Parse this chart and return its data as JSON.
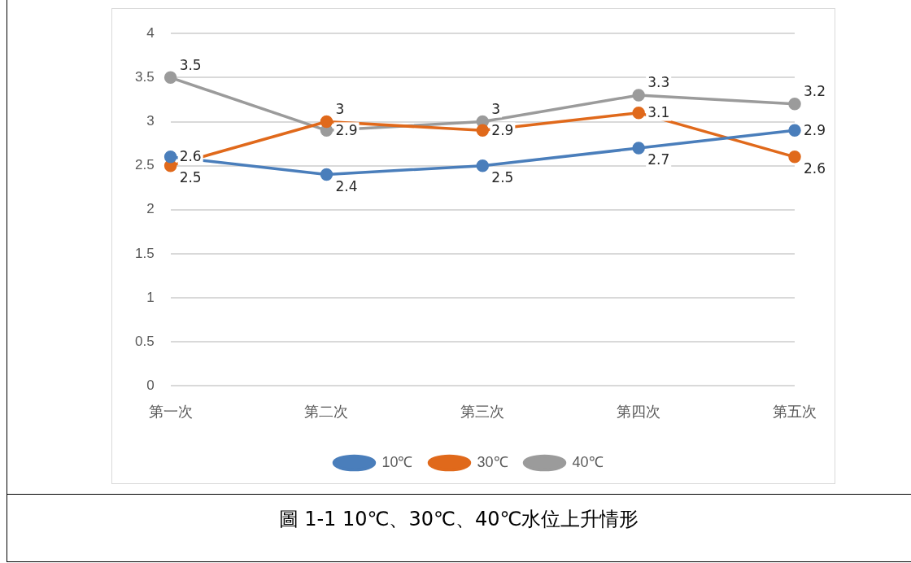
{
  "chart_data": {
    "type": "line",
    "categories": [
      "第一次",
      "第二次",
      "第三次",
      "第四次",
      "第五次"
    ],
    "series": [
      {
        "name": "10℃",
        "color": "#4a7ebb",
        "values": [
          2.6,
          2.4,
          2.5,
          2.7,
          2.9
        ]
      },
      {
        "name": "30℃",
        "color": "#e0691b",
        "values": [
          2.5,
          3,
          2.9,
          3.1,
          2.6
        ]
      },
      {
        "name": "40℃",
        "color": "#9b9b9b",
        "values": [
          3.5,
          2.9,
          3,
          3.3,
          3.2
        ]
      }
    ],
    "ylim": [
      0,
      4
    ],
    "yticks": [
      0,
      0.5,
      1,
      1.5,
      2,
      2.5,
      3,
      3.5,
      4
    ],
    "grid": "y",
    "legend": "bottom",
    "marker": "circle",
    "line_style": "solid",
    "data_labels": true,
    "annotations": [
      "圖 1-1 10℃、30℃、40℃水位上升情形"
    ]
  }
}
